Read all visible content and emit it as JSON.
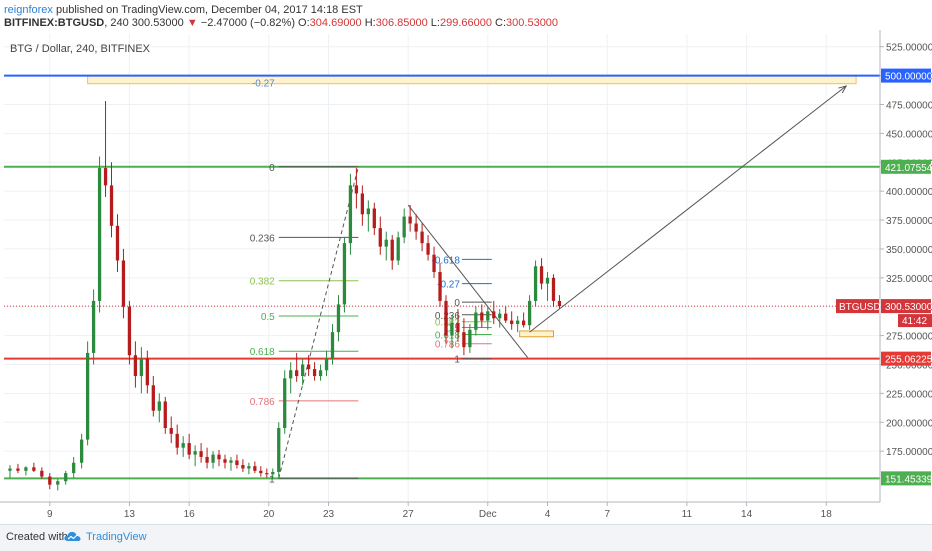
{
  "header": {
    "author": "reignforex",
    "published_text": "published on TradingView.com, December 04, 2017 14:18 EST",
    "symbol": "BITFINEX:BTGUSD",
    "interval": "240",
    "price": "300.53000",
    "change_arrow": "▼",
    "change": "−2.47000 (−0.82%)",
    "o_label": "O:",
    "o_value": "304.69000",
    "h_label": "H:",
    "h_value": "306.85000",
    "l_label": "L:",
    "l_value": "299.66000",
    "c_label": "C:",
    "c_value": "300.53000"
  },
  "chart_data": {
    "type": "candlestick",
    "pane_title": "BTG / Dollar, 240, BITFINEX",
    "y_ticks": [
      175,
      200,
      225,
      250,
      275,
      300,
      325,
      350,
      375,
      400,
      425,
      450,
      475,
      500,
      525
    ],
    "y_tick_labels": [
      "175.000000",
      "200.000000",
      "225.000000",
      "250.000000",
      "275.000000",
      "300.000000",
      "325.000000",
      "350.000000",
      "375.000000",
      "400.000000",
      "425.000000",
      "450.000000",
      "475.000000",
      "500.000000",
      "525.000000"
    ],
    "ylim": [
      131,
      536
    ],
    "x_ticks": [
      {
        "label": "9",
        "day": 9
      },
      {
        "label": "13",
        "day": 13
      },
      {
        "label": "16",
        "day": 16
      },
      {
        "label": "20",
        "day": 20
      },
      {
        "label": "23",
        "day": 23
      },
      {
        "label": "27",
        "day": 27
      },
      {
        "label": "Dec",
        "day": 31
      },
      {
        "label": "4",
        "day": 34
      },
      {
        "label": "7",
        "day": 37
      },
      {
        "label": "11",
        "day": 41
      },
      {
        "label": "14",
        "day": 44
      },
      {
        "label": "18",
        "day": 48
      }
    ],
    "xlim": [
      6.7,
      50.7
    ],
    "grid": true,
    "horizontal_levels": [
      {
        "value": 500.0,
        "label": "500.000000",
        "color": "#2962ff"
      },
      {
        "value": 421.07554,
        "label": "421.07554",
        "color": "#4caf50"
      },
      {
        "value": 300.53,
        "label": "300.53000",
        "color": "#d2363a",
        "dotted": true
      },
      {
        "value": 255.06225,
        "label": "255.06225",
        "color": "#e53935"
      },
      {
        "value": 151.45339,
        "label": "151.45339",
        "color": "#4caf50"
      }
    ],
    "last_price_tag": {
      "symbol": "BTGUSD",
      "value": "300.53000",
      "countdown": "41:42"
    },
    "fib_left": {
      "x_start_day": 20.5,
      "x_end_day": 24.5,
      "levels": [
        {
          "ratio": "0",
          "value": 421.1,
          "color": "#555555"
        },
        {
          "ratio": "0.236",
          "value": 360.0,
          "color": "#555555"
        },
        {
          "ratio": "0.382",
          "value": 322.5,
          "color": "#8bc34a"
        },
        {
          "ratio": "0.5",
          "value": 292.0,
          "color": "#4caf50"
        },
        {
          "ratio": "0.618",
          "value": 261.5,
          "color": "#4caf50"
        },
        {
          "ratio": "0.786",
          "value": 218.5,
          "color": "#e57373"
        },
        {
          "ratio": "1",
          "value": 151.5,
          "color": "#555555"
        }
      ],
      "extension": {
        "ratio": "-0.27",
        "value": 494.0,
        "color": "#5b8bc9"
      }
    },
    "fib_right": {
      "x_start_day": 29.7,
      "x_end_day": 31.2,
      "levels": [
        {
          "ratio": "-0.618",
          "value": 341.0,
          "color": "#1e6fd0"
        },
        {
          "ratio": "-0.27",
          "value": 320.0,
          "color": "#1e6fd0"
        },
        {
          "ratio": "0",
          "value": 304.0,
          "color": "#555555"
        },
        {
          "ratio": "0.236",
          "value": 293.0,
          "color": "#555555"
        },
        {
          "ratio": "0.382",
          "value": 287.0,
          "color": "#8bc34a"
        },
        {
          "ratio": "0.5",
          "value": 282.0,
          "color": "#4caf50"
        },
        {
          "ratio": "0.618",
          "value": 276.0,
          "color": "#4caf50"
        },
        {
          "ratio": "0.786",
          "value": 268.0,
          "color": "#e57373"
        },
        {
          "ratio": "1",
          "value": 255.0,
          "color": "#555555"
        }
      ]
    },
    "target_zone": {
      "x_start_day": 10.9,
      "x_end_day": 49.5,
      "y_low": 493.0,
      "y_high": 500.0
    },
    "support_zone": {
      "x_start_day": 32.6,
      "x_end_day": 34.3,
      "y_low": 274.0,
      "y_high": 279.0
    },
    "trend_lines": [
      {
        "x1": 27.0,
        "y1": 388.0,
        "x2": 33.0,
        "y2": 256.0,
        "color": "#555555"
      },
      {
        "x1": 20.5,
        "y1": 151.5,
        "x2": 24.5,
        "y2": 421.1,
        "color": "#555555",
        "dashed": true
      }
    ],
    "projection_arrow": {
      "x1": 33.1,
      "y1": 278.0,
      "x2": 49.0,
      "y2": 491.0,
      "color": "#555555"
    },
    "candles": [
      [
        7.0,
        158.0,
        163.0,
        152.0,
        160.0
      ],
      [
        7.4,
        160.0,
        164.0,
        156.0,
        158.0
      ],
      [
        7.8,
        158.0,
        162.0,
        154.0,
        161.0
      ],
      [
        8.2,
        161.0,
        165.0,
        157.0,
        158.0
      ],
      [
        8.6,
        158.0,
        161.0,
        151.0,
        153.0
      ],
      [
        9.0,
        153.0,
        156.0,
        142.0,
        146.0
      ],
      [
        9.4,
        146.0,
        151.0,
        141.0,
        149.0
      ],
      [
        9.8,
        149.0,
        158.0,
        146.0,
        156.0
      ],
      [
        10.2,
        156.0,
        170.0,
        152.0,
        165.0
      ],
      [
        10.6,
        165.0,
        190.0,
        160.0,
        185.0
      ],
      [
        10.9,
        185.0,
        270.0,
        180.0,
        260.0
      ],
      [
        11.2,
        260.0,
        315.0,
        250.0,
        305.0
      ],
      [
        11.5,
        305.0,
        430.0,
        295.0,
        420.0
      ],
      [
        11.8,
        420.0,
        478.0,
        395.0,
        405.0
      ],
      [
        12.1,
        405.0,
        425.0,
        360.0,
        370.0
      ],
      [
        12.4,
        370.0,
        380.0,
        330.0,
        340.0
      ],
      [
        12.7,
        340.0,
        350.0,
        290.0,
        300.0
      ],
      [
        13.0,
        300.0,
        305.0,
        250.0,
        258.0
      ],
      [
        13.3,
        258.0,
        270.0,
        230.0,
        240.0
      ],
      [
        13.6,
        240.0,
        265.0,
        225.0,
        255.0
      ],
      [
        13.9,
        255.0,
        262.0,
        225.0,
        232.0
      ],
      [
        14.2,
        232.0,
        240.0,
        205.0,
        210.0
      ],
      [
        14.5,
        210.0,
        225.0,
        200.0,
        218.0
      ],
      [
        14.8,
        218.0,
        222.0,
        190.0,
        195.0
      ],
      [
        15.1,
        195.0,
        205.0,
        182.0,
        190.0
      ],
      [
        15.4,
        190.0,
        198.0,
        172.0,
        178.0
      ],
      [
        15.7,
        178.0,
        188.0,
        170.0,
        182.0
      ],
      [
        16.0,
        182.0,
        190.0,
        168.0,
        172.0
      ],
      [
        16.3,
        172.0,
        180.0,
        162.0,
        175.0
      ],
      [
        16.6,
        175.0,
        182.0,
        165.0,
        170.0
      ],
      [
        16.9,
        170.0,
        178.0,
        160.0,
        165.0
      ],
      [
        17.2,
        165.0,
        175.0,
        160.0,
        172.0
      ],
      [
        17.5,
        172.0,
        176.0,
        162.0,
        168.0
      ],
      [
        17.8,
        168.0,
        172.0,
        160.0,
        165.0
      ],
      [
        18.1,
        165.0,
        170.0,
        158.0,
        167.0
      ],
      [
        18.4,
        167.0,
        172.0,
        160.0,
        163.0
      ],
      [
        18.7,
        163.0,
        168.0,
        157.0,
        160.0
      ],
      [
        19.0,
        160.0,
        165.0,
        155.0,
        162.0
      ],
      [
        19.3,
        162.0,
        166.0,
        156.0,
        158.0
      ],
      [
        19.6,
        158.0,
        162.0,
        153.0,
        156.0
      ],
      [
        19.9,
        156.0,
        160.0,
        152.0,
        155.0
      ],
      [
        20.2,
        155.0,
        160.0,
        151.0,
        157.0
      ],
      [
        20.5,
        157.0,
        200.0,
        152.0,
        195.0
      ],
      [
        20.8,
        195.0,
        245.0,
        190.0,
        238.0
      ],
      [
        21.1,
        238.0,
        252.0,
        225.0,
        245.0
      ],
      [
        21.4,
        245.0,
        260.0,
        235.0,
        240.0
      ],
      [
        21.7,
        240.0,
        255.0,
        232.0,
        250.0
      ],
      [
        22.0,
        250.0,
        258.0,
        240.0,
        246.0
      ],
      [
        22.3,
        246.0,
        252.0,
        236.0,
        240.0
      ],
      [
        22.6,
        240.0,
        250.0,
        236.0,
        245.0
      ],
      [
        22.9,
        245.0,
        262.0,
        240.0,
        255.0
      ],
      [
        23.2,
        255.0,
        285.0,
        250.0,
        278.0
      ],
      [
        23.5,
        278.0,
        310.0,
        270.0,
        302.0
      ],
      [
        23.8,
        302.0,
        360.0,
        295.0,
        355.0
      ],
      [
        24.1,
        355.0,
        415.0,
        345.0,
        405.0
      ],
      [
        24.4,
        405.0,
        420.0,
        385.0,
        398.0
      ],
      [
        24.7,
        398.0,
        405.0,
        370.0,
        380.0
      ],
      [
        25.0,
        380.0,
        392.0,
        365.0,
        385.0
      ],
      [
        25.3,
        385.0,
        390.0,
        362.0,
        368.0
      ],
      [
        25.6,
        368.0,
        378.0,
        345.0,
        352.0
      ],
      [
        25.9,
        352.0,
        365.0,
        340.0,
        358.0
      ],
      [
        26.2,
        358.0,
        362.0,
        332.0,
        340.0
      ],
      [
        26.5,
        340.0,
        365.0,
        336.0,
        360.0
      ],
      [
        26.8,
        360.0,
        385.0,
        355.0,
        378.0
      ],
      [
        27.1,
        378.0,
        388.0,
        365.0,
        372.0
      ],
      [
        27.4,
        372.0,
        380.0,
        358.0,
        365.0
      ],
      [
        27.7,
        365.0,
        372.0,
        348.0,
        355.0
      ],
      [
        28.0,
        355.0,
        362.0,
        340.0,
        345.0
      ],
      [
        28.3,
        345.0,
        352.0,
        325.0,
        330.0
      ],
      [
        28.6,
        330.0,
        338.0,
        300.0,
        305.0
      ],
      [
        28.9,
        305.0,
        310.0,
        268.0,
        275.0
      ],
      [
        29.2,
        275.0,
        292.0,
        264.0,
        286.0
      ],
      [
        29.5,
        286.0,
        298.0,
        270.0,
        278.0
      ],
      [
        29.8,
        278.0,
        290.0,
        258.0,
        265.0
      ],
      [
        30.1,
        265.0,
        285.0,
        260.0,
        280.0
      ],
      [
        30.4,
        280.0,
        300.0,
        275.0,
        295.0
      ],
      [
        30.7,
        295.0,
        302.0,
        282.0,
        288.0
      ],
      [
        31.0,
        288.0,
        300.0,
        280.0,
        296.0
      ],
      [
        31.3,
        296.0,
        305.0,
        285.0,
        290.0
      ],
      [
        31.6,
        290.0,
        298.0,
        282.0,
        294.0
      ],
      [
        31.9,
        294.0,
        300.0,
        286.0,
        288.0
      ],
      [
        32.2,
        288.0,
        296.0,
        280.0,
        285.0
      ],
      [
        32.5,
        285.0,
        292.0,
        278.0,
        288.0
      ],
      [
        32.8,
        288.0,
        295.0,
        282.0,
        284.0
      ],
      [
        33.1,
        284.0,
        310.0,
        280.0,
        305.0
      ],
      [
        33.4,
        305.0,
        340.0,
        300.0,
        335.0
      ],
      [
        33.7,
        335.0,
        342.0,
        315.0,
        320.0
      ],
      [
        34.0,
        320.0,
        330.0,
        305.0,
        325.0
      ],
      [
        34.3,
        325.0,
        328.0,
        300.0,
        305.0
      ],
      [
        34.6,
        305.0,
        310.0,
        298.0,
        300.5
      ]
    ]
  },
  "footer": {
    "created_with": "Created with",
    "brand": "TradingView"
  }
}
